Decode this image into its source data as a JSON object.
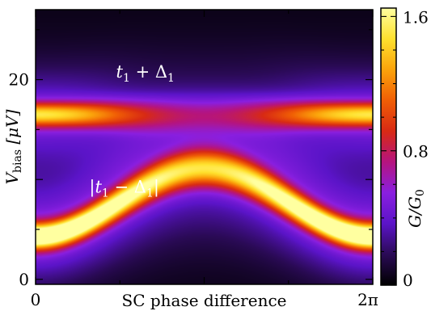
{
  "chart_data": {
    "type": "heatmap",
    "title": "",
    "xlabel": "SC phase difference",
    "ylabel": "V_bias [μV]",
    "xlim": [
      0,
      6.2832
    ],
    "ylim": [
      -0.5,
      27
    ],
    "x_ticks": [
      {
        "value": 0,
        "label": "0"
      },
      {
        "value": 6.2832,
        "label": "2π"
      }
    ],
    "y_ticks": [
      {
        "value": 0,
        "label": "0"
      },
      {
        "value": 20,
        "label": "20"
      }
    ],
    "ylabel_parts": {
      "main": "V",
      "sub": "bias",
      "unit": "[μV]"
    },
    "colorbar": {
      "label": "G/G_0",
      "label_parts": {
        "num": "G",
        "den": "G",
        "den_sub": "0"
      },
      "range": [
        0,
        1.65
      ],
      "ticks": [
        {
          "value": 0,
          "label": "0"
        },
        {
          "value": 0.8,
          "label": "0.8"
        },
        {
          "value": 1.6,
          "label": "1.6"
        }
      ],
      "colormap": [
        "#000000",
        "#2a0a55",
        "#5b14c8",
        "#8a1fe0",
        "#b5147f",
        "#d82a14",
        "#f05e05",
        "#fba30b",
        "#ffe12e",
        "#ffffa0"
      ]
    },
    "bands": [
      {
        "name": "t1+Δ1",
        "center_mean_uV": 16.5,
        "center_amplitude_uV": 0.0,
        "peak_G_at_phase_0": 1.05,
        "peak_G_at_phase_pi": 0.38,
        "width_uV": 1.2
      },
      {
        "name": "|t1-Δ1|",
        "center_mean_uV": 7.7,
        "center_amplitude_uV": -3.4,
        "peak_G_at_phase_0": 1.6,
        "peak_G_at_phase_pi": 1.05,
        "width_uV": 1.25
      }
    ],
    "annotations": [
      {
        "text_main": "t",
        "text_sub": "1",
        "op": " + ",
        "text_main2": "Δ",
        "text_sub2": "1",
        "abs": false,
        "x": 1.5,
        "y": 20.2
      },
      {
        "text_main": "t",
        "text_sub": "1",
        "op": " − ",
        "text_main2": "Δ",
        "text_sub2": "1",
        "abs": true,
        "x": 1.0,
        "y": 8.7
      }
    ],
    "grid": false
  }
}
